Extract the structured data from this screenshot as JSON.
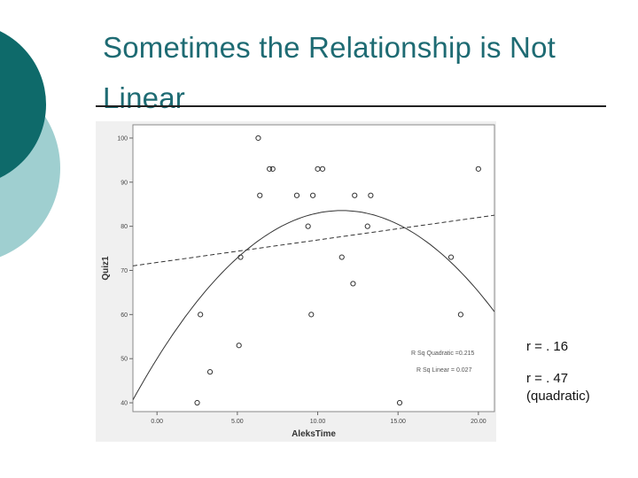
{
  "slide": {
    "title": "Sometimes the Relationship is Not Linear",
    "accent_dark": "#0e6a6a",
    "accent_light": "#9fcfd0"
  },
  "stats": {
    "r_linear": "r = . 16",
    "r_quadratic": "r = . 47",
    "r_quadratic_note": "(quadratic)"
  },
  "chart_data": {
    "type": "scatter",
    "xlabel": "AleksTime",
    "ylabel": "Quiz1",
    "xlim": [
      -1.5,
      21
    ],
    "ylim": [
      38,
      103
    ],
    "x_ticks": [
      "0.00",
      "5.00",
      "10.00",
      "15.00",
      "20.00"
    ],
    "y_ticks": [
      "40",
      "50",
      "60",
      "70",
      "80",
      "90",
      "100"
    ],
    "x_tick_values": [
      0,
      5,
      10,
      15,
      20
    ],
    "y_tick_values": [
      40,
      50,
      60,
      70,
      80,
      90,
      100
    ],
    "grid": false,
    "points": [
      {
        "x": 6.3,
        "y": 100
      },
      {
        "x": 7.0,
        "y": 93
      },
      {
        "x": 7.2,
        "y": 93
      },
      {
        "x": 10.0,
        "y": 93
      },
      {
        "x": 10.3,
        "y": 93
      },
      {
        "x": 20.0,
        "y": 93
      },
      {
        "x": 6.4,
        "y": 87
      },
      {
        "x": 8.7,
        "y": 87
      },
      {
        "x": 9.7,
        "y": 87
      },
      {
        "x": 12.3,
        "y": 87
      },
      {
        "x": 13.3,
        "y": 87
      },
      {
        "x": 9.4,
        "y": 80
      },
      {
        "x": 13.1,
        "y": 80
      },
      {
        "x": 5.2,
        "y": 73
      },
      {
        "x": 11.5,
        "y": 73
      },
      {
        "x": 18.3,
        "y": 73
      },
      {
        "x": 12.2,
        "y": 67
      },
      {
        "x": 2.7,
        "y": 60
      },
      {
        "x": 9.6,
        "y": 60
      },
      {
        "x": 18.9,
        "y": 60
      },
      {
        "x": 5.1,
        "y": 53
      },
      {
        "x": 3.3,
        "y": 47
      },
      {
        "x": 2.5,
        "y": 40
      },
      {
        "x": 15.1,
        "y": 40
      }
    ],
    "fit_linear": {
      "intercept": 71.8,
      "slope": 0.51
    },
    "fit_quadratic": {
      "a": -0.254,
      "b": 5.84,
      "c": 50
    },
    "annotations": [
      "R Sq Quadratic =0.215",
      "R Sq Linear = 0.027"
    ],
    "colors": {
      "frame": "#888888",
      "plot_bg": "#ffffff",
      "outer_bg": "#f0f0f0",
      "mark": "#333333"
    }
  }
}
